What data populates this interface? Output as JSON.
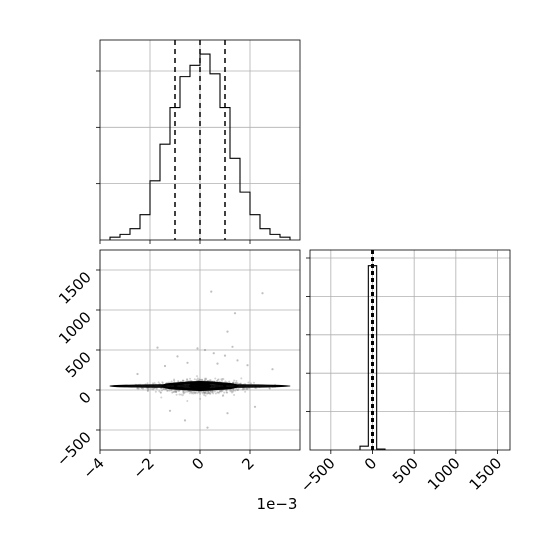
{
  "chart_data": [
    {
      "panel": "top-left",
      "type": "histogram",
      "bins_x": [
        -3.6,
        -3.2,
        -2.8,
        -2.4,
        -2.0,
        -1.6,
        -1.2,
        -0.8,
        -0.4,
        0.0,
        0.4,
        0.8,
        1.2,
        1.6,
        2.0,
        2.4,
        2.8,
        3.2,
        3.6
      ],
      "counts": [
        0.01,
        0.02,
        0.04,
        0.09,
        0.21,
        0.34,
        0.47,
        0.58,
        0.62,
        0.66,
        0.59,
        0.47,
        0.29,
        0.17,
        0.09,
        0.04,
        0.02,
        0.01
      ],
      "quantile_lines_x": [
        -1.0,
        0.0,
        1.0
      ],
      "xlim": [
        -4.0,
        4.0
      ],
      "ylim": [
        0.0,
        0.71
      ],
      "y_ticks": [
        0.2,
        0.4,
        0.6
      ],
      "y_tick_labels_shown": false,
      "grid": true
    },
    {
      "panel": "bottom-left",
      "type": "scatter-contour",
      "xlim": [
        -4.0,
        4.0
      ],
      "ylim": [
        -750,
        1750
      ],
      "x_ticks": [
        -4,
        -2,
        0,
        2
      ],
      "x_tick_labels": [
        "−4",
        "−2",
        "0",
        "2"
      ],
      "y_ticks": [
        -500,
        0,
        500,
        1000,
        1500
      ],
      "y_tick_labels": [
        "−500",
        "0",
        "500",
        "1000",
        "1500"
      ],
      "x_offset_text": "1e−3",
      "contour_center": [
        0.0,
        50
      ],
      "contour_half_widths": [
        [
          3.6,
          16
        ],
        [
          1.5,
          40
        ],
        [
          1.0,
          48
        ],
        [
          0.4,
          30
        ]
      ],
      "outliers": [
        [
          0.45,
          1230
        ],
        [
          2.5,
          1210
        ],
        [
          1.4,
          960
        ],
        [
          1.1,
          730
        ],
        [
          1.3,
          540
        ],
        [
          -1.7,
          530
        ],
        [
          -0.1,
          520
        ],
        [
          0.2,
          500
        ],
        [
          0.55,
          460
        ],
        [
          -0.9,
          420
        ],
        [
          1.0,
          430
        ],
        [
          1.5,
          370
        ],
        [
          -0.5,
          340
        ],
        [
          0.7,
          330
        ],
        [
          1.9,
          310
        ],
        [
          -1.4,
          300
        ],
        [
          2.9,
          260
        ],
        [
          -2.5,
          200
        ],
        [
          0.3,
          -470
        ],
        [
          -0.6,
          -380
        ],
        [
          1.1,
          -290
        ],
        [
          -1.2,
          -260
        ],
        [
          2.2,
          -210
        ]
      ],
      "grid": true
    },
    {
      "panel": "bottom-right",
      "type": "histogram",
      "xlim": [
        -750,
        1650
      ],
      "x_ticks": [
        -500,
        0,
        500,
        1000,
        1500
      ],
      "x_tick_labels": [
        "−500",
        "0",
        "500",
        "1000",
        "1500"
      ],
      "bins_x": [
        -150,
        -50,
        50,
        150
      ],
      "counts": [
        0.02,
        0.96,
        0.005
      ],
      "quantile_lines_x": [
        -10,
        0,
        10
      ],
      "ylim": [
        0.0,
        1.0
      ],
      "y_ticks": [
        0.2,
        0.4,
        0.6,
        0.8,
        1.0
      ],
      "y_tick_labels_shown": false,
      "grid": true
    }
  ],
  "colors": {
    "line": "#000000",
    "grid": "#b0b0b0",
    "scatter": "#7f7f7f"
  }
}
